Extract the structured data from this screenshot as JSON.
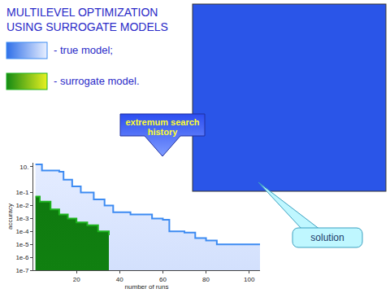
{
  "chart_data": {
    "type": "area",
    "title": "MULTILEVEL OPTIMIZATION\nUSING SURROGATE MODELS",
    "annotations": [
      "extremum search\nhistory",
      "solution"
    ],
    "x_label": "number of runs",
    "y_label": "accuracy",
    "series": [
      {
        "name": "- true model;",
        "color": "#3d8bf2",
        "x": [
          1,
          4,
          12,
          14,
          18,
          22,
          28,
          33,
          37,
          45,
          55,
          60,
          63,
          70,
          75,
          80,
          85,
          105
        ],
        "values": [
          15,
          5,
          4,
          1,
          0.3,
          0.1,
          0.03,
          0.01,
          0.003,
          0.002,
          0.001,
          0.0008,
          0.0001,
          8e-05,
          3e-05,
          2e-05,
          1e-05,
          1e-05
        ]
      },
      {
        "name": "- surrogate model.",
        "color": "#1fb41f",
        "x": [
          1,
          3,
          8,
          12,
          16,
          20,
          25,
          30,
          35
        ],
        "values": [
          0.05,
          0.02,
          0.005,
          0.002,
          0.001,
          0.0005,
          0.0003,
          0.0001,
          5e-05
        ]
      }
    ],
    "xlim": [
      0,
      105
    ],
    "xticks": [
      20,
      40,
      60,
      80,
      100
    ],
    "ylim": [
      1e-07,
      20
    ],
    "yticks": [
      {
        "value": 10,
        "label": "10."
      },
      {
        "value": 0.1,
        "label": "1e-1"
      },
      {
        "value": 0.01,
        "label": "1e-2"
      },
      {
        "value": 0.001,
        "label": "1e-3"
      },
      {
        "value": 0.0001,
        "label": "1e-4"
      },
      {
        "value": 1e-05,
        "label": "1e-5"
      },
      {
        "value": 1e-06,
        "label": "1e-6"
      },
      {
        "value": 1e-07,
        "label": "1e-7"
      }
    ],
    "log": "y",
    "line_style": "step",
    "legend": "top left"
  }
}
